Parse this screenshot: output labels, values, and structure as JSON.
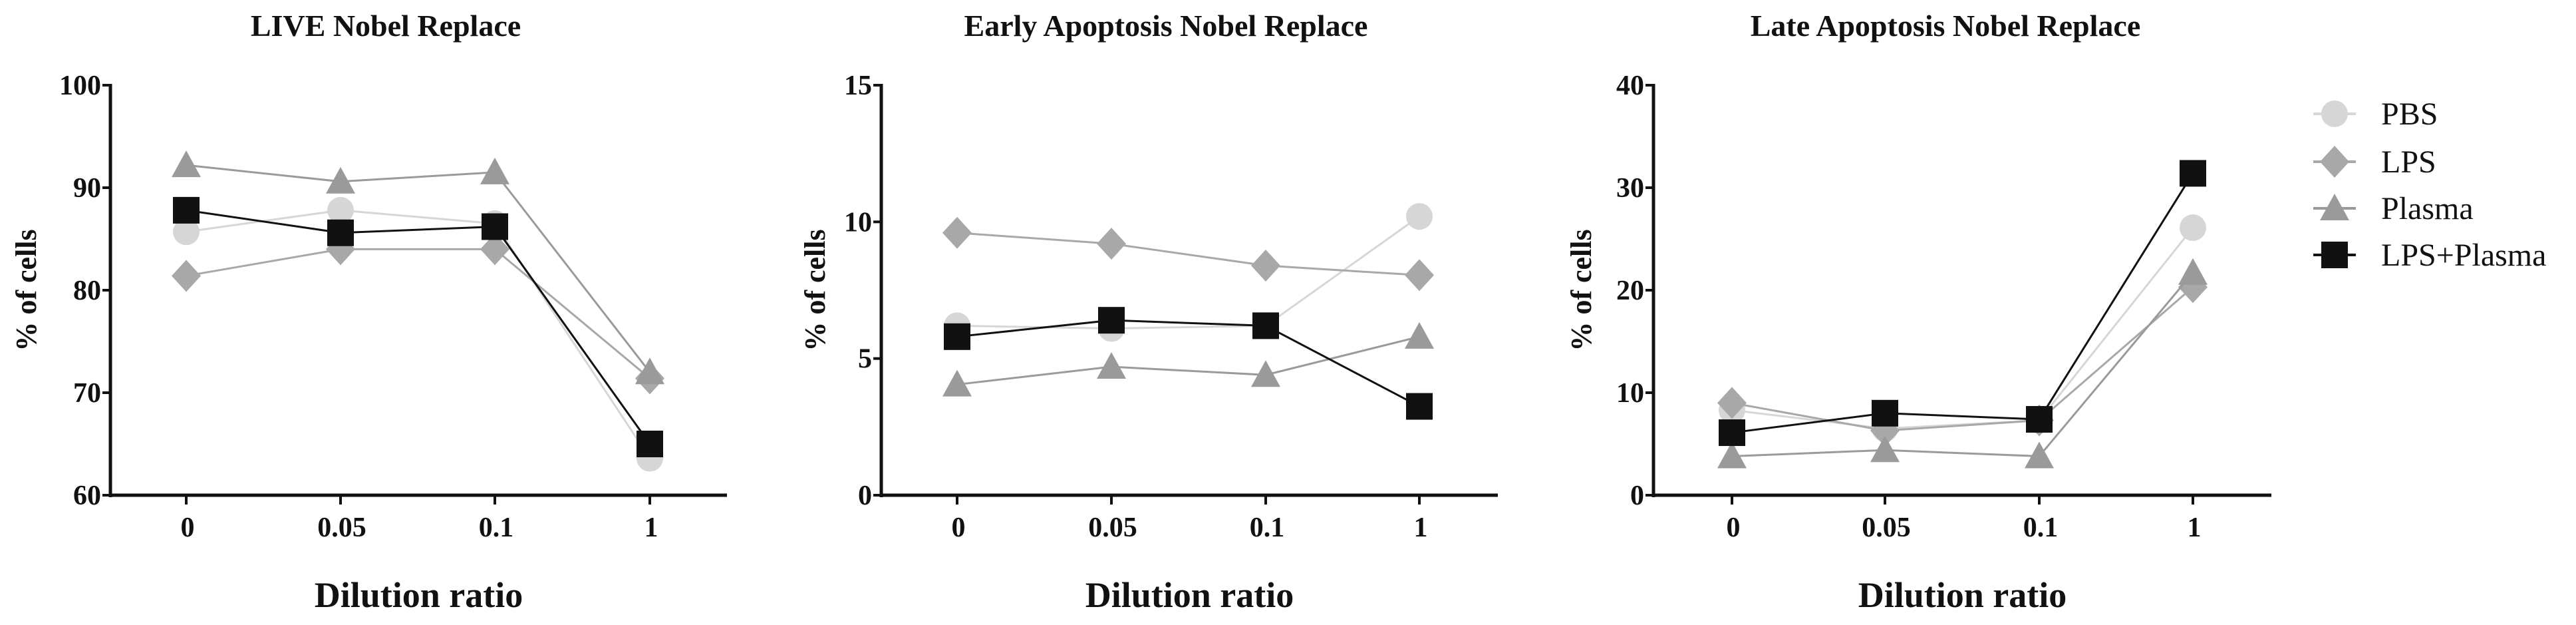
{
  "chart_data": [
    {
      "type": "line",
      "title": "LIVE Nobel Replace",
      "xlabel": "Dilution ratio",
      "ylabel": "% of cells",
      "categories": [
        "0",
        "0.05",
        "0.1",
        "1"
      ],
      "ylim": [
        60,
        100
      ],
      "yticks": [
        60,
        70,
        80,
        90,
        100
      ],
      "series": [
        {
          "name": "PBS",
          "values": [
            85.7,
            87.8,
            86.5,
            63.6
          ]
        },
        {
          "name": "LPS",
          "values": [
            81.4,
            84.0,
            84.0,
            71.4
          ]
        },
        {
          "name": "Plasma",
          "values": [
            92.2,
            90.6,
            91.5,
            72.0
          ]
        },
        {
          "name": "LPS+Plasma",
          "values": [
            87.8,
            85.6,
            86.2,
            65.0
          ]
        }
      ]
    },
    {
      "type": "line",
      "title": "Early Apoptosis Nobel Replace",
      "xlabel": "Dilution ratio",
      "ylabel": "% of cells",
      "categories": [
        "0",
        "0.05",
        "0.1",
        "1"
      ],
      "ylim": [
        0,
        15
      ],
      "yticks": [
        0,
        5,
        10,
        15
      ],
      "series": [
        {
          "name": "PBS",
          "values": [
            6.2,
            6.1,
            6.2,
            10.2
          ]
        },
        {
          "name": "LPS",
          "values": [
            9.6,
            9.2,
            8.4,
            8.05
          ]
        },
        {
          "name": "Plasma",
          "values": [
            4.05,
            4.7,
            4.4,
            5.8
          ]
        },
        {
          "name": "LPS+Plasma",
          "values": [
            5.8,
            6.4,
            6.2,
            3.25
          ]
        }
      ]
    },
    {
      "type": "line",
      "title": "Late Apoptosis Nobel Replace",
      "xlabel": "Dilution ratio",
      "ylabel": "% of cells",
      "categories": [
        "0",
        "0.05",
        "0.1",
        "1"
      ],
      "ylim": [
        0,
        40
      ],
      "yticks": [
        0,
        10,
        20,
        30,
        40
      ],
      "series": [
        {
          "name": "PBS",
          "values": [
            8.3,
            6.5,
            7.3,
            26.1
          ]
        },
        {
          "name": "LPS",
          "values": [
            9.0,
            6.3,
            7.3,
            20.3
          ]
        },
        {
          "name": "Plasma",
          "values": [
            3.8,
            4.4,
            3.8,
            21.7
          ]
        },
        {
          "name": "LPS+Plasma",
          "values": [
            6.1,
            8.0,
            7.4,
            31.4
          ]
        }
      ]
    }
  ],
  "legend": {
    "placement": "right",
    "items": [
      {
        "name": "PBS",
        "marker": "circle",
        "color": "#d6d6d6"
      },
      {
        "name": "LPS",
        "marker": "diamond",
        "color": "#a8a8a8"
      },
      {
        "name": "Plasma",
        "marker": "triangle",
        "color": "#9a9a9a"
      },
      {
        "name": "LPS+Plasma",
        "marker": "square",
        "color": "#111111"
      }
    ]
  }
}
